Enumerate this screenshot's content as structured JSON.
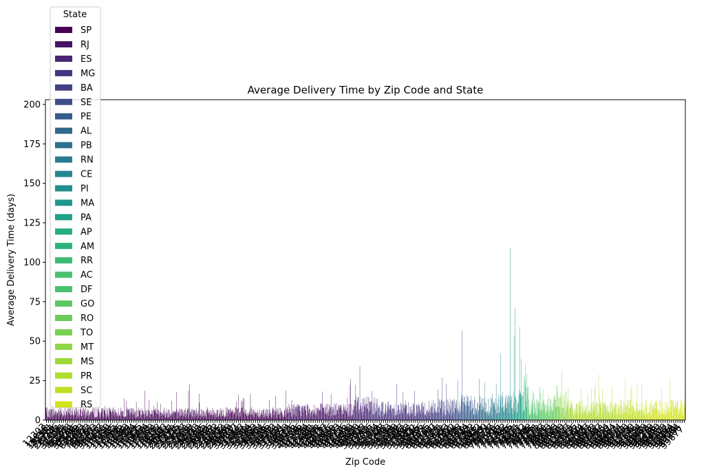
{
  "chart_data": {
    "type": "bar",
    "title": "Average Delivery Time by Zip Code and State",
    "xlabel": "Zip Code",
    "ylabel": "Average Delivery Time (days)",
    "ylim": [
      0,
      203
    ],
    "yticks": [
      0,
      25,
      50,
      75,
      100,
      125,
      150,
      175,
      200
    ],
    "legend": {
      "title": "State",
      "placement": "top-left"
    },
    "series": [
      {
        "name": "SP",
        "color": "#440154",
        "bars": 620,
        "typical": 6,
        "peak": 23
      },
      {
        "name": "RJ",
        "color": "#471365",
        "bars": 170,
        "typical": 8,
        "peak": 26
      },
      {
        "name": "ES",
        "color": "#482475",
        "bars": 45,
        "typical": 12,
        "peak": 34
      },
      {
        "name": "MG",
        "color": "#46337f",
        "bars": 150,
        "typical": 9,
        "peak": 23
      },
      {
        "name": "BA",
        "color": "#424186",
        "bars": 60,
        "typical": 10,
        "peak": 27
      },
      {
        "name": "SE",
        "color": "#3d4e8a",
        "bars": 20,
        "typical": 10,
        "peak": 25
      },
      {
        "name": "PE",
        "color": "#375b8d",
        "bars": 40,
        "typical": 12,
        "peak": 57
      },
      {
        "name": "AL",
        "color": "#32678e",
        "bars": 15,
        "typical": 12,
        "peak": 26
      },
      {
        "name": "PB",
        "color": "#2d718e",
        "bars": 20,
        "typical": 11,
        "peak": 24
      },
      {
        "name": "RN",
        "color": "#297b8e",
        "bars": 18,
        "typical": 11,
        "peak": 23
      },
      {
        "name": "CE",
        "color": "#25858e",
        "bars": 30,
        "typical": 13,
        "peak": 42
      },
      {
        "name": "PI",
        "color": "#218f8d",
        "bars": 10,
        "typical": 14,
        "peak": 109
      },
      {
        "name": "MA",
        "color": "#1f988b",
        "bars": 12,
        "typical": 14,
        "peak": 71
      },
      {
        "name": "PA",
        "color": "#20a386",
        "bars": 18,
        "typical": 15,
        "peak": 59
      },
      {
        "name": "AP",
        "color": "#26ad81",
        "bars": 3,
        "typical": 18,
        "peak": 28
      },
      {
        "name": "AM",
        "color": "#2eb37c",
        "bars": 4,
        "typical": 20,
        "peak": 35
      },
      {
        "name": "RR",
        "color": "#3bbb75",
        "bars": 2,
        "typical": 20,
        "peak": 29
      },
      {
        "name": "AC",
        "color": "#4ac16d",
        "bars": 3,
        "typical": 17,
        "peak": 21
      },
      {
        "name": "DF",
        "color": "#4ac16d",
        "bars": 30,
        "typical": 11,
        "peak": 21
      },
      {
        "name": "GO",
        "color": "#5ec962",
        "bars": 35,
        "typical": 10,
        "peak": 20
      },
      {
        "name": "RO",
        "color": "#6ccd5a",
        "bars": 10,
        "typical": 13,
        "peak": 22
      },
      {
        "name": "TO",
        "color": "#7ad151",
        "bars": 8,
        "typical": 13,
        "peak": 22
      },
      {
        "name": "MT",
        "color": "#8fd744",
        "bars": 15,
        "typical": 12,
        "peak": 31
      },
      {
        "name": "MS",
        "color": "#9dd93b",
        "bars": 15,
        "typical": 10,
        "peak": 20
      },
      {
        "name": "PR",
        "color": "#b2dd2d",
        "bars": 110,
        "typical": 9,
        "peak": 29
      },
      {
        "name": "SC",
        "color": "#c0df25",
        "bars": 80,
        "typical": 10,
        "peak": 27
      },
      {
        "name": "RS",
        "color": "#d2e21b",
        "bars": 100,
        "typical": 10,
        "peak": 26
      }
    ]
  }
}
